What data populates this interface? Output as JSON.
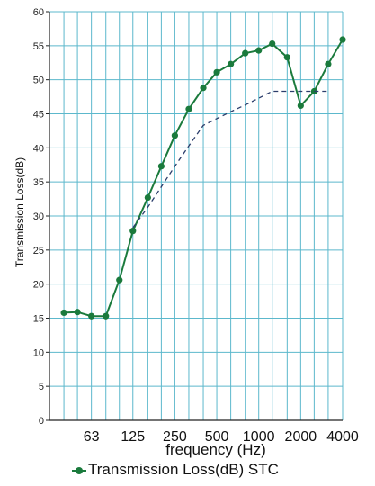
{
  "chart_data": {
    "type": "line",
    "xlabel": "frequency (Hz)",
    "ylabel": "Transmission Loss(dB)",
    "ylim": [
      0,
      60
    ],
    "y_ticks": [
      0,
      5,
      10,
      15,
      20,
      25,
      30,
      35,
      40,
      45,
      50,
      55,
      60
    ],
    "x_scale": "log (third-octave bands)",
    "x_tick_labels": [
      "63",
      "125",
      "250",
      "500",
      "1000",
      "2000",
      "4000"
    ],
    "x_tick_values": [
      63,
      125,
      250,
      500,
      1000,
      2000,
      4000
    ],
    "grid": true,
    "legend_position": "bottom",
    "legend_label": "Transmission Loss(dB) STC",
    "series": [
      {
        "name": "Transmission Loss(dB)",
        "style": "solid with markers",
        "color": "#1a7a3c",
        "x": [
          40,
          50,
          63,
          80,
          100,
          125,
          160,
          200,
          250,
          315,
          400,
          500,
          630,
          800,
          1000,
          1250,
          1600,
          2000,
          2500,
          3150,
          4000
        ],
        "y": [
          15.8,
          15.9,
          15.3,
          15.3,
          20.6,
          27.8,
          32.7,
          37.3,
          41.8,
          45.7,
          48.8,
          51.1,
          52.3,
          53.9,
          54.3,
          55.3,
          53.3,
          46.2,
          48.3,
          52.3,
          55.9
        ]
      },
      {
        "name": "STC",
        "style": "dashed",
        "color": "#2b3d6b",
        "x": [
          125,
          160,
          200,
          250,
          315,
          400,
          500,
          630,
          800,
          1000,
          1250,
          1600,
          2000,
          2500,
          3150
        ],
        "y": [
          28.3,
          31.3,
          34.3,
          37.3,
          40.3,
          43.3,
          44.3,
          45.3,
          46.3,
          47.3,
          48.3,
          48.3,
          48.3,
          48.3,
          48.3
        ]
      }
    ]
  },
  "colors": {
    "grid": "#5cb8cc",
    "axis": "#222222"
  }
}
